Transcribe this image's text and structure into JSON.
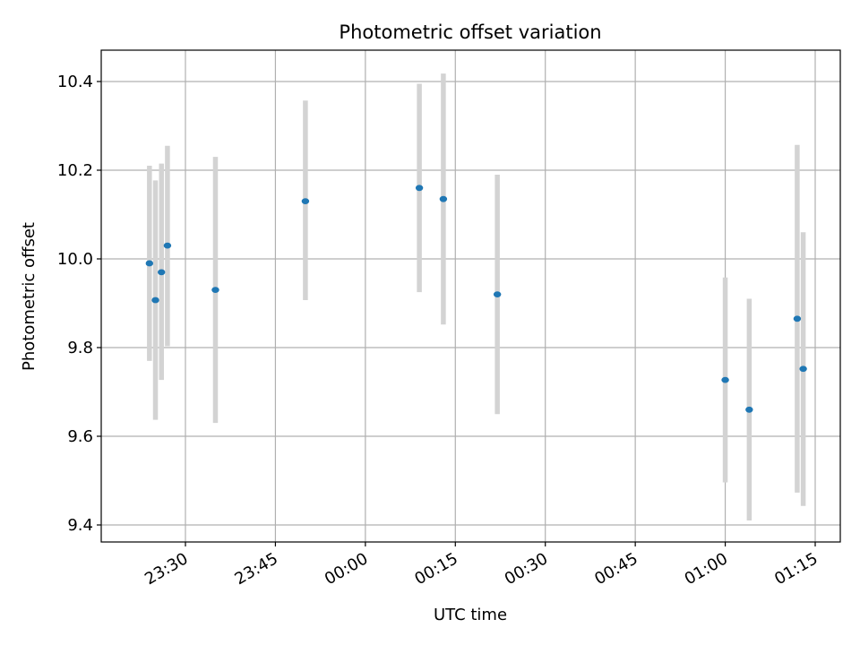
{
  "chart_data": {
    "type": "scatter",
    "title": "Photometric offset variation",
    "xlabel": "UTC time",
    "ylabel": "Photometric offset",
    "x_ticks": [
      "23:30",
      "23:45",
      "00:00",
      "00:15",
      "00:30",
      "00:45",
      "01:00",
      "01:15"
    ],
    "y_ticks": [
      "9.4",
      "9.6",
      "9.8",
      "10.0",
      "10.2",
      "10.4"
    ],
    "grid": true,
    "colors": {
      "point": "#1f77b4",
      "errorbar": "#d3d3d3",
      "grid": "#b0b0b0"
    },
    "points": [
      {
        "time": "23:24",
        "y": 9.99,
        "low": 9.77,
        "high": 10.21
      },
      {
        "time": "23:25",
        "y": 9.907,
        "low": 9.637,
        "high": 10.177
      },
      {
        "time": "23:26",
        "y": 9.97,
        "low": 9.727,
        "high": 10.215
      },
      {
        "time": "23:27",
        "y": 10.03,
        "low": 9.803,
        "high": 10.255
      },
      {
        "time": "23:35",
        "y": 9.93,
        "low": 9.63,
        "high": 10.23
      },
      {
        "time": "23:50",
        "y": 10.13,
        "low": 9.907,
        "high": 10.357
      },
      {
        "time": "00:09",
        "y": 10.16,
        "low": 9.925,
        "high": 10.395
      },
      {
        "time": "00:13",
        "y": 10.135,
        "low": 9.852,
        "high": 10.418
      },
      {
        "time": "00:22",
        "y": 9.92,
        "low": 9.65,
        "high": 10.19
      },
      {
        "time": "01:00",
        "y": 9.727,
        "low": 9.496,
        "high": 9.958
      },
      {
        "time": "01:04",
        "y": 9.66,
        "low": 9.41,
        "high": 9.91
      },
      {
        "time": "01:12",
        "y": 9.865,
        "low": 9.473,
        "high": 10.257
      },
      {
        "time": "01:13",
        "y": 9.752,
        "low": 9.443,
        "high": 10.06
      }
    ]
  }
}
